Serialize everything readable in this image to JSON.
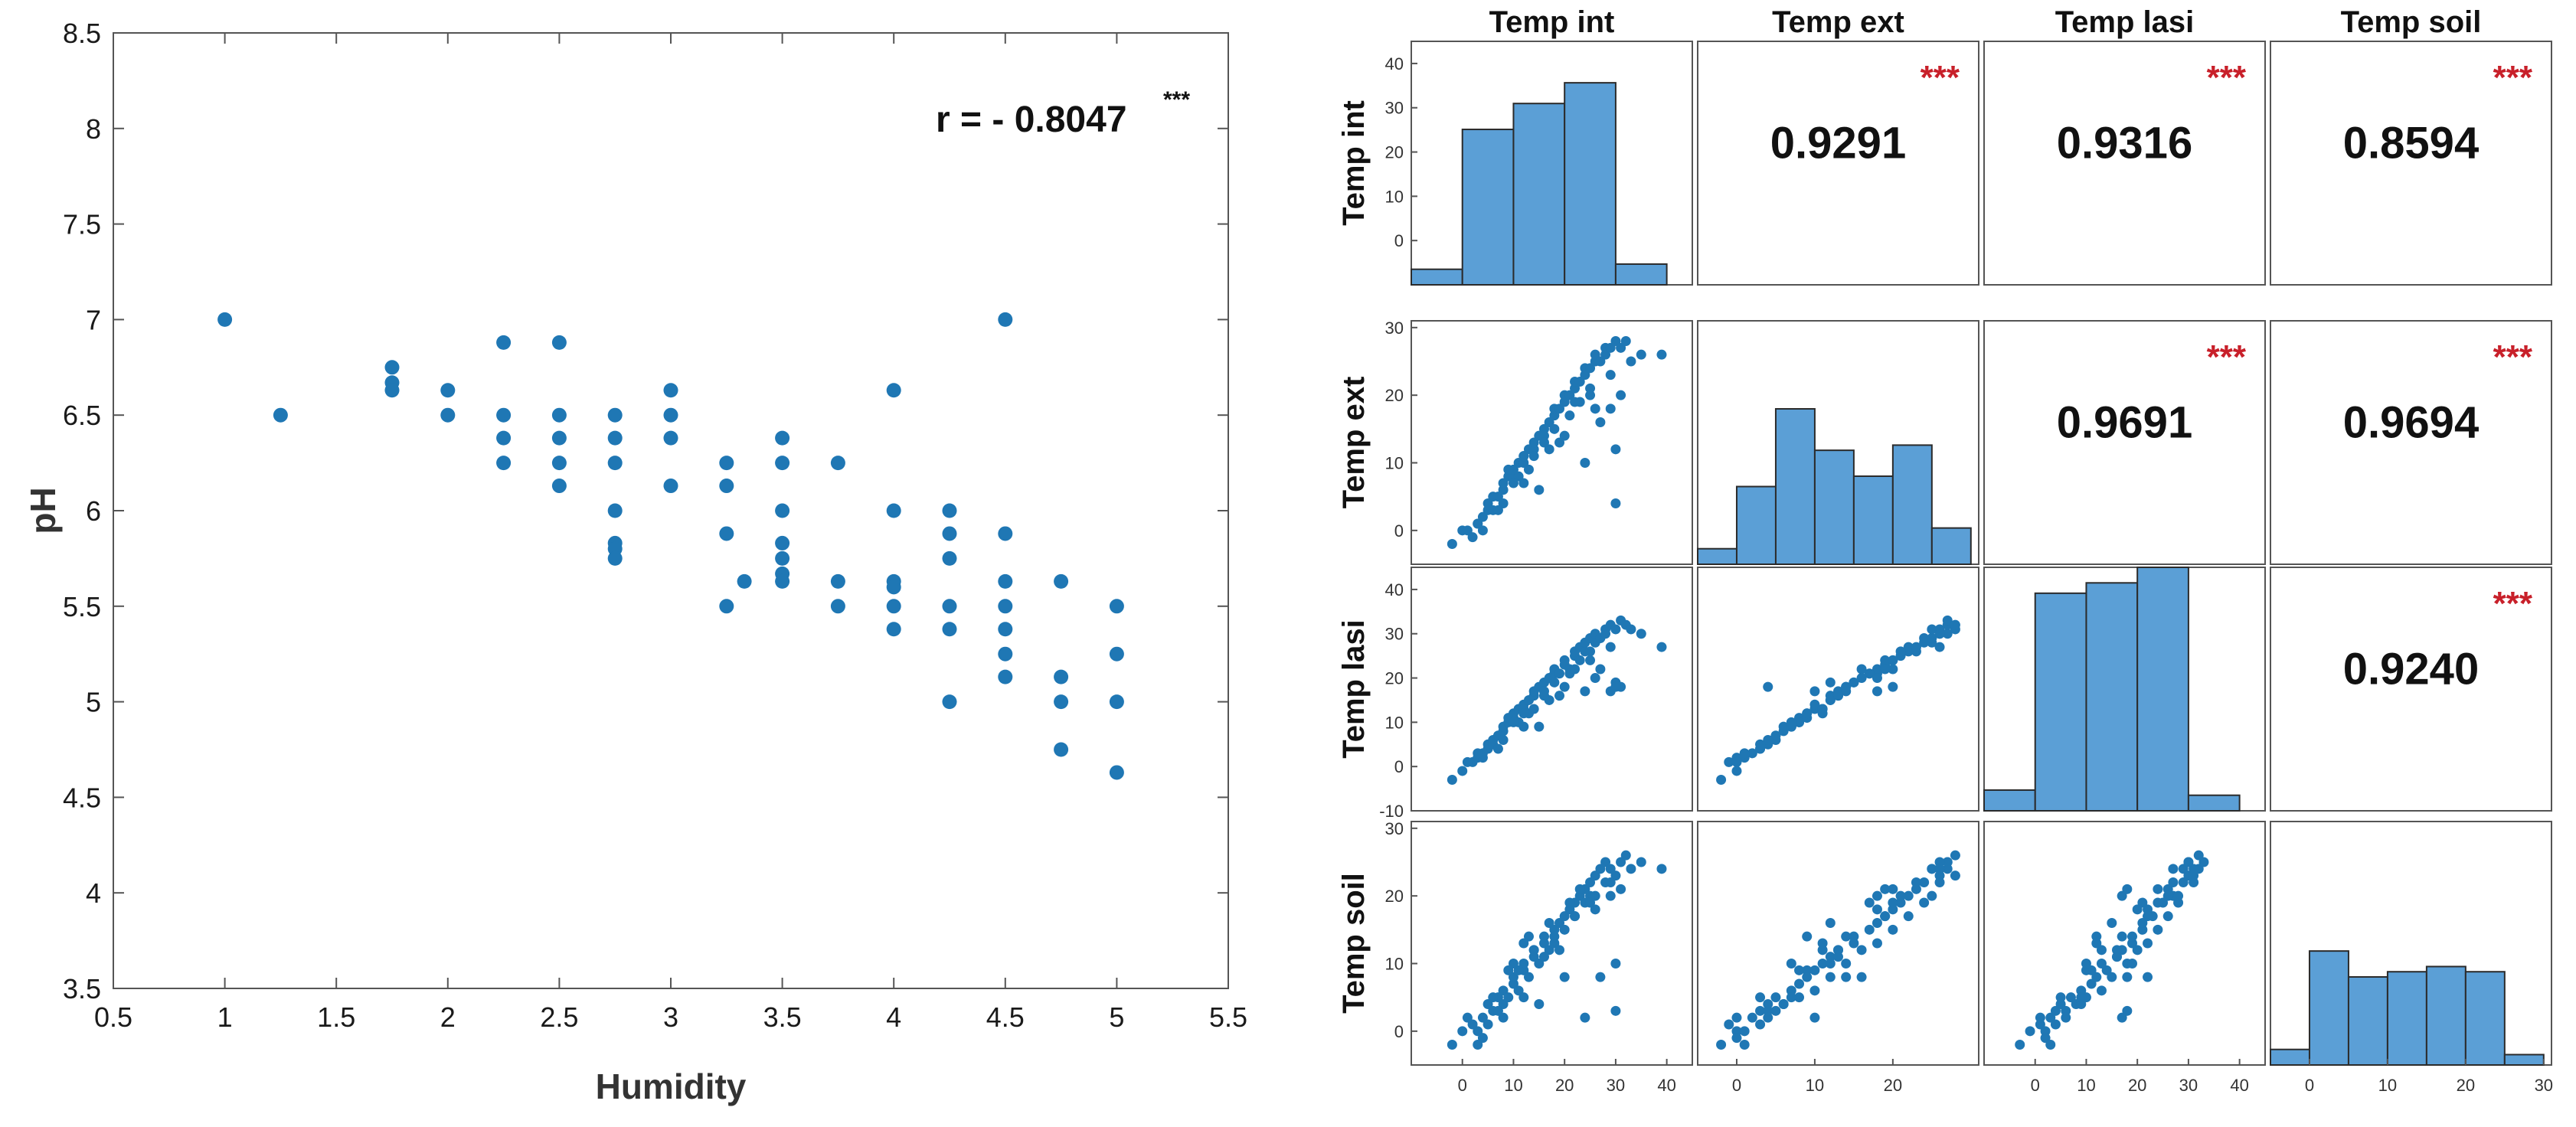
{
  "colors": {
    "marker": "#1f77b4",
    "bar_fill": "#5b9fd6",
    "bar_edge": "#2b2b2b",
    "axis": "#555555",
    "sig": "#c8202a",
    "text": "#1a1a1a"
  },
  "chart_data": [
    {
      "type": "scatter",
      "title": "",
      "xlabel": "Humidity",
      "ylabel": "pH",
      "xlim": [
        0.5,
        5.5
      ],
      "ylim": [
        3.5,
        8.5
      ],
      "xticks": [
        0.5,
        1,
        1.5,
        2,
        2.5,
        3,
        3.5,
        4,
        4.5,
        5,
        5.5
      ],
      "yticks": [
        3.5,
        4,
        4.5,
        5,
        5.5,
        6,
        6.5,
        7,
        7.5,
        8,
        8.5
      ],
      "xtick_labels": [
        "0.5",
        "1",
        "1.5",
        "2",
        "2.5",
        "3",
        "3.5",
        "4",
        "4.5",
        "5",
        "5.5"
      ],
      "ytick_labels": [
        "3.5",
        "4",
        "4.5",
        "5",
        "5.5",
        "6",
        "6.5",
        "7",
        "7.5",
        "8",
        "8.5"
      ],
      "annotation": "r = - 0.8047",
      "annotation_sig": "***",
      "points": [
        [
          1,
          7
        ],
        [
          1.25,
          6.5
        ],
        [
          1.75,
          6.75
        ],
        [
          1.75,
          6.67
        ],
        [
          1.75,
          6.63
        ],
        [
          2,
          6.63
        ],
        [
          2,
          6.5
        ],
        [
          2.25,
          6.88
        ],
        [
          2.25,
          6.5
        ],
        [
          2.25,
          6.38
        ],
        [
          2.25,
          6.25
        ],
        [
          2.5,
          6.88
        ],
        [
          2.5,
          6.5
        ],
        [
          2.5,
          6.38
        ],
        [
          2.5,
          6.25
        ],
        [
          2.5,
          6.13
        ],
        [
          2.75,
          6.5
        ],
        [
          2.75,
          6.38
        ],
        [
          2.75,
          6.25
        ],
        [
          2.75,
          6
        ],
        [
          2.75,
          5.83
        ],
        [
          2.75,
          5.8
        ],
        [
          2.75,
          5.75
        ],
        [
          3,
          6.63
        ],
        [
          3,
          6.5
        ],
        [
          3,
          6.38
        ],
        [
          3,
          6.13
        ],
        [
          3.25,
          6.25
        ],
        [
          3.25,
          6.13
        ],
        [
          3.25,
          5.88
        ],
        [
          3.25,
          5.5
        ],
        [
          3.33,
          5.63
        ],
        [
          3.5,
          6.38
        ],
        [
          3.5,
          6.25
        ],
        [
          3.5,
          6
        ],
        [
          3.5,
          5.83
        ],
        [
          3.5,
          5.75
        ],
        [
          3.5,
          5.67
        ],
        [
          3.5,
          5.63
        ],
        [
          3.75,
          6.25
        ],
        [
          3.75,
          5.63
        ],
        [
          3.75,
          5.5
        ],
        [
          4,
          6.63
        ],
        [
          4,
          6
        ],
        [
          4,
          5.63
        ],
        [
          4,
          5.6
        ],
        [
          4,
          5.5
        ],
        [
          4,
          5.38
        ],
        [
          4.25,
          6
        ],
        [
          4.25,
          5.88
        ],
        [
          4.25,
          5.75
        ],
        [
          4.25,
          5.5
        ],
        [
          4.25,
          5.38
        ],
        [
          4.25,
          5
        ],
        [
          4.5,
          7
        ],
        [
          4.5,
          5.88
        ],
        [
          4.5,
          5.63
        ],
        [
          4.5,
          5.5
        ],
        [
          4.5,
          5.38
        ],
        [
          4.5,
          5.25
        ],
        [
          4.5,
          5.13
        ],
        [
          4.75,
          5.63
        ],
        [
          4.75,
          5.13
        ],
        [
          4.75,
          5
        ],
        [
          4.75,
          4.75
        ],
        [
          5,
          5.5
        ],
        [
          5,
          5.25
        ],
        [
          5,
          5
        ],
        [
          5,
          4.63
        ]
      ]
    },
    {
      "type": "scatter-matrix",
      "variables": [
        "Temp int",
        "Temp ext",
        "Temp lasi",
        "Temp soil"
      ],
      "significance": "***",
      "correlations": [
        {
          "row": 0,
          "col": 1,
          "r": "0.9291"
        },
        {
          "row": 0,
          "col": 2,
          "r": "0.9316"
        },
        {
          "row": 0,
          "col": 3,
          "r": "0.8594"
        },
        {
          "row": 1,
          "col": 2,
          "r": "0.9691"
        },
        {
          "row": 1,
          "col": 3,
          "r": "0.9694"
        },
        {
          "row": 2,
          "col": 3,
          "r": "0.9240"
        }
      ],
      "histograms": [
        {
          "edges": [
            -10,
            0,
            10,
            20,
            30,
            40
          ],
          "counts": [
            3,
            30,
            35,
            39,
            4
          ]
        },
        {
          "edges": [
            -5,
            0,
            5,
            10,
            15,
            20,
            25,
            30
          ],
          "counts": [
            3,
            15,
            30,
            22,
            17,
            23,
            7
          ]
        },
        {
          "edges": [
            -10,
            0,
            10,
            20,
            30,
            40
          ],
          "counts": [
            4,
            42,
            44,
            47,
            3
          ]
        },
        {
          "edges": [
            -5,
            0,
            5,
            10,
            15,
            20,
            25,
            30
          ],
          "counts": [
            3,
            22,
            17,
            18,
            19,
            18,
            2
          ]
        }
      ],
      "hist_ylim": [
        0,
        47
      ],
      "row_ranges": [
        [
          -10,
          45
        ],
        [
          -5,
          31
        ],
        [
          -10,
          45
        ],
        [
          -5,
          31
        ]
      ],
      "col_ranges": [
        [
          -10,
          45
        ],
        [
          -5,
          31
        ],
        [
          -10,
          45
        ],
        [
          -5,
          31
        ]
      ],
      "row_ticks": [
        [
          0,
          10,
          20,
          30,
          40
        ],
        [
          0,
          10,
          20,
          30
        ],
        [
          -10,
          0,
          10,
          20,
          30,
          40
        ],
        [
          0,
          10,
          20,
          30
        ]
      ],
      "row_tick_labels": [
        [
          "0",
          "10",
          "20",
          "30",
          "40"
        ],
        [
          "0",
          "10",
          "20",
          "30"
        ],
        [
          "-10",
          "0",
          "10",
          "20",
          "30",
          "40"
        ],
        [
          "0",
          "10",
          "20",
          "30"
        ]
      ],
      "col_ticks": [
        [
          0,
          10,
          20,
          30,
          40
        ],
        [
          0,
          10,
          20
        ],
        [
          0,
          10,
          20,
          30,
          40
        ],
        [
          0,
          10,
          20,
          30
        ]
      ],
      "col_tick_labels": [
        [
          "0",
          "10",
          "20",
          "30",
          "40"
        ],
        [
          "0",
          "10",
          "20"
        ],
        [
          "0",
          "10",
          "20",
          "30",
          "40"
        ],
        [
          "0",
          "10",
          "20",
          "30"
        ]
      ],
      "samples": [
        [
          -2,
          -2,
          -3,
          -2
        ],
        [
          0,
          0,
          -1,
          0
        ],
        [
          2,
          -1,
          1,
          1
        ],
        [
          3,
          1,
          2,
          0
        ],
        [
          4,
          2,
          3,
          2
        ],
        [
          5,
          3,
          4,
          1
        ],
        [
          5,
          4,
          5,
          4
        ],
        [
          6,
          5,
          6,
          3
        ],
        [
          7,
          5,
          7,
          5
        ],
        [
          8,
          6,
          8,
          4
        ],
        [
          8,
          7,
          9,
          6
        ],
        [
          9,
          8,
          10,
          5
        ],
        [
          10,
          8,
          11,
          7
        ],
        [
          10,
          9,
          12,
          8
        ],
        [
          11,
          10,
          13,
          6
        ],
        [
          12,
          10,
          14,
          9
        ],
        [
          12,
          11,
          13,
          10
        ],
        [
          13,
          12,
          15,
          8
        ],
        [
          14,
          12,
          16,
          11
        ],
        [
          14,
          13,
          17,
          12
        ],
        [
          15,
          14,
          18,
          10
        ],
        [
          16,
          15,
          19,
          13
        ],
        [
          16,
          14,
          17,
          14
        ],
        [
          17,
          16,
          20,
          12
        ],
        [
          18,
          17,
          21,
          15
        ],
        [
          18,
          18,
          22,
          13
        ],
        [
          19,
          18,
          21,
          16
        ],
        [
          20,
          19,
          23,
          17
        ],
        [
          20,
          20,
          24,
          15
        ],
        [
          21,
          20,
          22,
          18
        ],
        [
          22,
          21,
          25,
          19
        ],
        [
          22,
          22,
          26,
          17
        ],
        [
          23,
          22,
          27,
          20
        ],
        [
          24,
          23,
          26,
          21
        ],
        [
          24,
          24,
          28,
          19
        ],
        [
          25,
          24,
          29,
          22
        ],
        [
          26,
          25,
          28,
          20
        ],
        [
          26,
          26,
          30,
          23
        ],
        [
          27,
          25,
          29,
          24
        ],
        [
          28,
          26,
          31,
          22
        ],
        [
          28,
          27,
          30,
          25
        ],
        [
          29,
          27,
          32,
          24
        ],
        [
          30,
          28,
          31,
          23
        ],
        [
          31,
          27,
          33,
          25
        ],
        [
          32,
          28,
          32,
          26
        ],
        [
          30,
          12,
          19,
          10
        ],
        [
          27,
          16,
          22,
          8
        ],
        [
          24,
          10,
          17,
          2
        ],
        [
          20,
          14,
          18,
          8
        ],
        [
          15,
          6,
          9,
          4
        ],
        [
          12,
          7,
          9,
          5
        ],
        [
          8,
          4,
          6,
          2
        ],
        [
          6,
          3,
          5,
          5
        ],
        [
          9,
          9,
          11,
          9
        ],
        [
          13,
          9,
          12,
          14
        ],
        [
          17,
          12,
          15,
          16
        ],
        [
          21,
          17,
          21,
          19
        ],
        [
          23,
          19,
          24,
          21
        ],
        [
          25,
          21,
          26,
          20
        ],
        [
          29,
          23,
          27,
          22
        ],
        [
          33,
          25,
          31,
          24
        ],
        [
          35,
          26,
          30,
          25
        ],
        [
          31,
          20,
          18,
          21
        ],
        [
          29,
          18,
          17,
          20
        ],
        [
          26,
          18,
          20,
          18
        ],
        [
          19,
          13,
          16,
          12
        ],
        [
          11,
          8,
          10,
          9
        ],
        [
          7,
          3,
          4,
          3
        ],
        [
          4,
          0,
          2,
          -1
        ],
        [
          3,
          1,
          3,
          -2
        ],
        [
          1,
          0,
          1,
          2
        ],
        [
          14,
          11,
          13,
          12
        ],
        [
          16,
          13,
          16,
          11
        ],
        [
          18,
          15,
          19,
          14
        ],
        [
          22,
          19,
          22,
          17
        ],
        [
          25,
          20,
          24,
          19
        ],
        [
          39,
          26,
          27,
          24
        ],
        [
          30,
          4,
          18,
          3
        ],
        [
          12,
          11,
          12,
          13
        ],
        [
          10,
          7,
          10,
          10
        ]
      ]
    }
  ]
}
